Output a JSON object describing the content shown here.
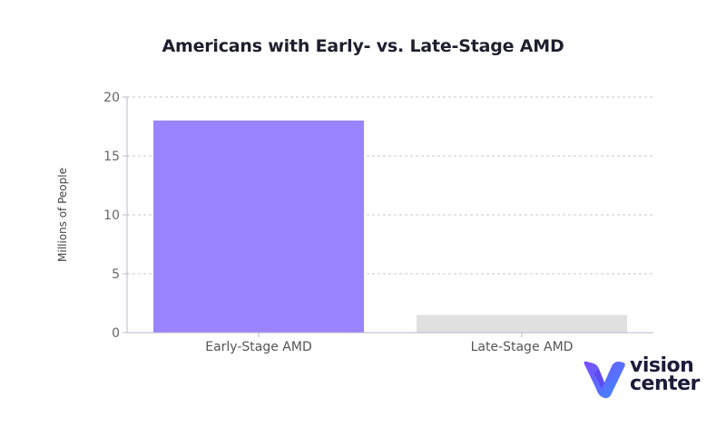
{
  "chart_data": {
    "type": "bar",
    "title": "Americans with Early- vs. Late-Stage AMD",
    "ylabel": "Millions of People",
    "xlabel": "",
    "categories": [
      "Early-Stage AMD",
      "Late-Stage AMD"
    ],
    "values": [
      18,
      1.5
    ],
    "bar_colors": [
      "#9b84ff",
      "#e0e0e0"
    ],
    "ylim": [
      0,
      20
    ],
    "yticks": [
      0,
      5,
      10,
      15,
      20
    ],
    "grid": true
  },
  "logo": {
    "line1": "vision",
    "line2": "center",
    "colors": [
      "#7b4dff",
      "#3a8dff"
    ]
  }
}
